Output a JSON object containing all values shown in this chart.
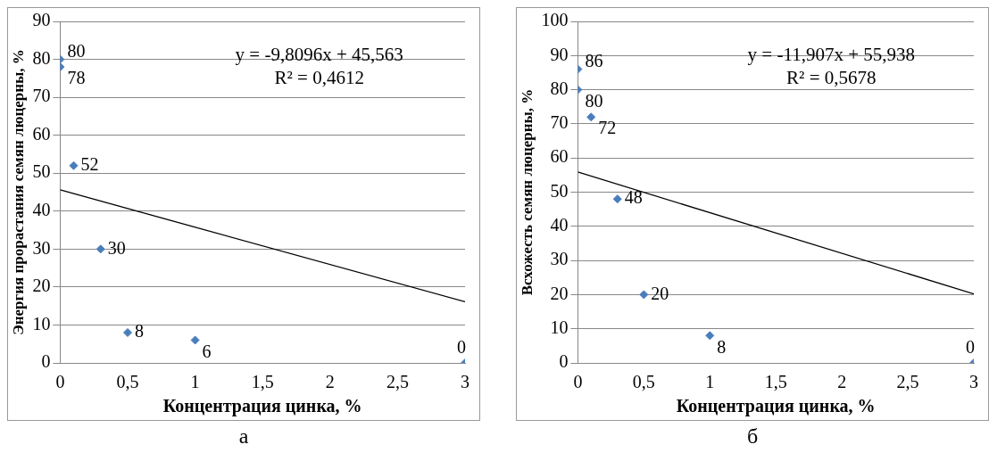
{
  "chart_data": [
    {
      "type": "scatter",
      "xlabel": "Концентрация цинка, %",
      "ylabel": "Энергия прорастания семян люцерны, %",
      "xlim": [
        0,
        3
      ],
      "xticks": [
        0,
        {
          "value": 0.5,
          "label": "0,5"
        },
        1,
        {
          "value": 1.5,
          "label": "1,5"
        },
        2,
        {
          "value": 2.5,
          "label": "2,5"
        },
        3
      ],
      "ylim": [
        0,
        90
      ],
      "yticks": [
        0,
        10,
        20,
        30,
        40,
        50,
        60,
        70,
        80,
        90
      ],
      "grid": "y",
      "marker": "diamond",
      "legend": false,
      "series": [
        {
          "type": "scatter",
          "color": "#4a7ebb",
          "x": [
            0,
            0,
            0.1,
            0.3,
            0.5,
            1,
            3
          ],
          "values": [
            80,
            78,
            52,
            30,
            8,
            6,
            0
          ],
          "value_labels": [
            "80",
            "78",
            "52",
            "30",
            "8",
            "6",
            "0"
          ]
        },
        {
          "type": "line",
          "color": "#000000",
          "marker": "none",
          "x": [
            0,
            3
          ],
          "values": [
            45.6,
            16.1
          ]
        }
      ],
      "annotations": [
        "y = -9,8096x + 45,563",
        "R² = 0,4612",
        "а"
      ]
    },
    {
      "type": "scatter",
      "xlabel": "Концентрация цинка, %",
      "ylabel": "Всхожесть семян люцерны, %",
      "xlim": [
        0,
        3
      ],
      "xticks": [
        0,
        {
          "value": 0.5,
          "label": "0,5"
        },
        1,
        {
          "value": 1.5,
          "label": "1,5"
        },
        2,
        {
          "value": 2.5,
          "label": "2,5"
        },
        3
      ],
      "ylim": [
        0,
        100
      ],
      "yticks": [
        0,
        10,
        20,
        30,
        40,
        50,
        60,
        70,
        80,
        90,
        100
      ],
      "grid": "y",
      "marker": "diamond",
      "legend": false,
      "series": [
        {
          "type": "scatter",
          "color": "#4a7ebb",
          "x": [
            0,
            0,
            0.1,
            0.3,
            0.5,
            1,
            3
          ],
          "values": [
            86,
            80,
            72,
            48,
            20,
            8,
            0
          ],
          "value_labels": [
            "86",
            "80",
            "72",
            "48",
            "20",
            "8",
            "0"
          ]
        },
        {
          "type": "line",
          "color": "#000000",
          "marker": "none",
          "x": [
            0,
            3
          ],
          "values": [
            55.9,
            20.2
          ]
        }
      ],
      "annotations": [
        "y = -11,907x + 55,938",
        "R² = 0,5678",
        "б"
      ]
    }
  ]
}
